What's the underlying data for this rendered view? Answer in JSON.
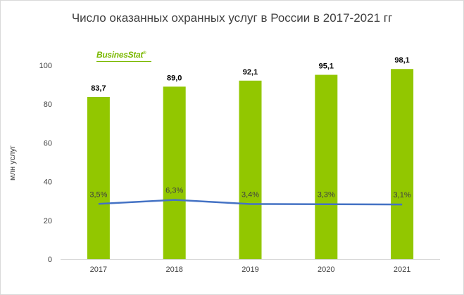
{
  "chart_data": {
    "type": "bar",
    "title": "Число оказанных охранных услуг в России в 2017-2021 гг",
    "ylabel": "млн услуг",
    "xlabel": "",
    "categories": [
      "2017",
      "2018",
      "2019",
      "2020",
      "2021"
    ],
    "series": [
      {
        "type": "bar",
        "values": [
          83.7,
          89.0,
          92.1,
          95.1,
          98.1
        ],
        "labels": [
          "83,7",
          "89,0",
          "92,1",
          "95,1",
          "98,1"
        ],
        "color": "#92c700"
      },
      {
        "type": "line",
        "values": [
          3.5,
          6.3,
          3.4,
          3.3,
          3.1
        ],
        "labels": [
          "3,5%",
          "6,3%",
          "3,4%",
          "3,3%",
          "3,1%"
        ],
        "color": "#4472c4"
      }
    ],
    "ylim": [
      0,
      100
    ],
    "yticks": [
      "0",
      "20",
      "40",
      "60",
      "80",
      "100"
    ],
    "grid": false,
    "legend": "none"
  },
  "brand": {
    "logo_text": "BusinesStat",
    "logo_mark": "®",
    "color": "#7ab800"
  }
}
